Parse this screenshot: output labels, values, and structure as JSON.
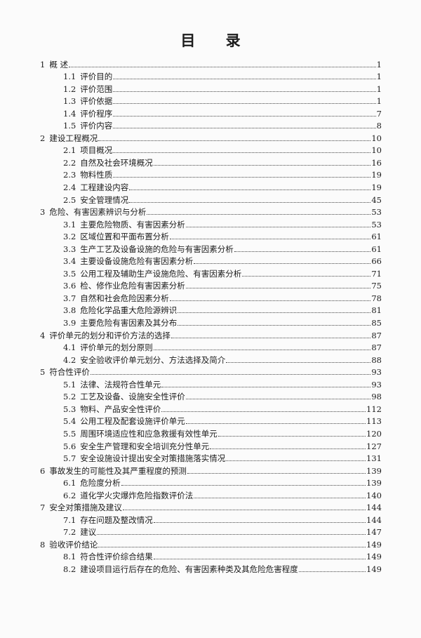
{
  "title": "目 录",
  "entries": [
    {
      "level": 1,
      "num": "1",
      "label": "概 述",
      "page": "1"
    },
    {
      "level": 2,
      "num": "1.1",
      "label": "评价目的",
      "page": "1"
    },
    {
      "level": 2,
      "num": "1.2",
      "label": "评价范围",
      "page": "1"
    },
    {
      "level": 2,
      "num": "1.3",
      "label": "评价依据",
      "page": "1"
    },
    {
      "level": 2,
      "num": "1.4",
      "label": "评价程序",
      "page": "7"
    },
    {
      "level": 2,
      "num": "1.5",
      "label": "评价内容",
      "page": "8"
    },
    {
      "level": 1,
      "num": "2",
      "label": "建设工程概况",
      "page": "10"
    },
    {
      "level": 2,
      "num": "2.1",
      "label": "项目概况",
      "page": "10"
    },
    {
      "level": 2,
      "num": "2.2",
      "label": "自然及社会环境概况",
      "page": "16"
    },
    {
      "level": 2,
      "num": "2.3",
      "label": "物料性质",
      "page": "19"
    },
    {
      "level": 2,
      "num": "2.4",
      "label": "工程建设内容",
      "page": "19"
    },
    {
      "level": 2,
      "num": "2.5",
      "label": "安全管理情况",
      "page": "45"
    },
    {
      "level": 1,
      "num": "3",
      "label": "危险、有害因素辨识与分析",
      "page": "53"
    },
    {
      "level": 2,
      "num": "3.1",
      "label": "主要危险物质、有害因素分析",
      "page": "53"
    },
    {
      "level": 2,
      "num": "3.2",
      "label": "区域位置和平面布置分析",
      "page": "61"
    },
    {
      "level": 2,
      "num": "3.3",
      "label": "生产工艺及设备设施的危险与有害因素分析",
      "page": "61"
    },
    {
      "level": 2,
      "num": "3.4",
      "label": "主要设备设施危险有害因素分析",
      "page": "66"
    },
    {
      "level": 2,
      "num": "3.5",
      "label": "公用工程及辅助生产设施危险、有害因素分析",
      "page": "71"
    },
    {
      "level": 2,
      "num": "3.6",
      "label": "检、修作业危险有害因素分析",
      "page": "75"
    },
    {
      "level": 2,
      "num": "3.7",
      "label": "自然和社会危险因素分析",
      "page": "78"
    },
    {
      "level": 2,
      "num": "3.8",
      "label": "危险化学品重大危险源辨识",
      "page": "81"
    },
    {
      "level": 2,
      "num": "3.9",
      "label": "主要危险有害因素及其分布",
      "page": "85"
    },
    {
      "level": 1,
      "num": "4",
      "label": "评价单元的划分和评价方法的选择",
      "page": "87"
    },
    {
      "level": 2,
      "num": "4.1",
      "label": "评价单元的划分原则",
      "page": "87"
    },
    {
      "level": 2,
      "num": "4.2",
      "label": "安全验收评价单元划分、方法选择及简介",
      "page": "88"
    },
    {
      "level": 1,
      "num": "5",
      "label": "符合性评价",
      "page": "93"
    },
    {
      "level": 2,
      "num": "5.1",
      "label": "法律、法规符合性单元",
      "page": "93"
    },
    {
      "level": 2,
      "num": "5.2",
      "label": "工艺及设备、设施安全性评价",
      "page": "98"
    },
    {
      "level": 2,
      "num": "5.3",
      "label": "物料、产品安全性评价",
      "page": "112"
    },
    {
      "level": 2,
      "num": "5.4",
      "label": "公用工程及配套设施评价单元",
      "page": "113"
    },
    {
      "level": 2,
      "num": "5.5",
      "label": "周围环境适应性和应急救援有效性单元",
      "page": "120"
    },
    {
      "level": 2,
      "num": "5.6",
      "label": "安全生产管理和安全培训充分性单元",
      "page": "127"
    },
    {
      "level": 2,
      "num": "5.7",
      "label": "安全设施设计提出安全对策措施落实情况",
      "page": "131"
    },
    {
      "level": 1,
      "num": "6",
      "label": "事故发生的可能性及其严重程度的预测",
      "page": "139"
    },
    {
      "level": 2,
      "num": "6.1",
      "label": "危险度分析",
      "page": "139"
    },
    {
      "level": 2,
      "num": "6.2",
      "label": "道化学火灾爆炸危险指数评价法",
      "page": "140"
    },
    {
      "level": 1,
      "num": "7",
      "label": "安全对策措施及建议",
      "page": "144"
    },
    {
      "level": 2,
      "num": "7.1",
      "label": "存在问题及整改情况",
      "page": "144"
    },
    {
      "level": 2,
      "num": "7.2",
      "label": "建议",
      "page": "147"
    },
    {
      "level": 1,
      "num": "8",
      "label": "验收评价结论",
      "page": "149"
    },
    {
      "level": 2,
      "num": "8.1",
      "label": "符合性评价综合结果",
      "page": "149"
    },
    {
      "level": 2,
      "num": "8.2",
      "label": "建设项目运行后存在的危险、有害因素种类及其危险危害程度",
      "page": "149"
    }
  ]
}
